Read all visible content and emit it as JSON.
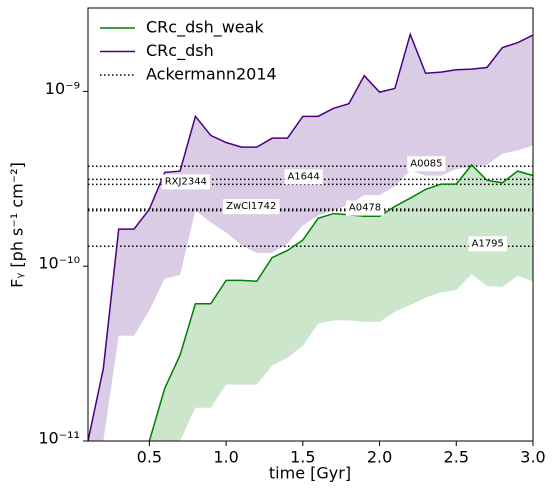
{
  "chart_data": {
    "type": "line",
    "x_label": "time [Gyr]",
    "y_label": "Fᵧ [ph s⁻¹ cm⁻²]",
    "y_scale": "log",
    "xlim": [
      0.1,
      3.0
    ],
    "ylim": [
      1e-11,
      3e-09
    ],
    "xticks": [
      0.5,
      {
        "value": 1,
        "label": "1.0"
      },
      1.5,
      {
        "value": 2,
        "label": "2.0"
      },
      2.5,
      {
        "value": 3,
        "label": "3.0"
      }
    ],
    "yticks": [
      {
        "value": 1e-11,
        "label": "10⁻¹¹"
      },
      {
        "value": 1e-10,
        "label": "10⁻¹⁰"
      },
      {
        "value": 1e-09,
        "label": "10⁻⁹"
      }
    ],
    "legend": "upper left",
    "band_opacity": 0.2,
    "x": [
      0.1,
      0.2,
      0.3,
      0.4,
      0.5,
      0.6,
      0.7,
      0.8,
      0.9,
      1.0,
      1.1,
      1.2,
      1.3,
      1.4,
      1.5,
      1.6,
      1.7,
      1.8,
      1.9,
      2.0,
      2.1,
      2.2,
      2.3,
      2.4,
      2.5,
      2.6,
      2.7,
      2.8,
      2.9,
      3.0
    ],
    "series": [
      {
        "name": "CRc_dsh_weak",
        "color": "#008000",
        "values": [
          null,
          null,
          null,
          null,
          1e-11,
          2e-11,
          3.1e-11,
          6.1e-11,
          6.1e-11,
          8.3e-11,
          8.3e-11,
          8.2e-11,
          1.12e-10,
          1.23e-10,
          1.41e-10,
          1.88e-10,
          2e-10,
          1.97e-10,
          1.93e-10,
          1.93e-10,
          2.2e-10,
          2.45e-10,
          2.75e-10,
          2.95e-10,
          2.95e-10,
          3.8e-10,
          3.1e-10,
          3e-10,
          3.5e-10,
          3.3e-10
        ],
        "lower": [
          null,
          null,
          null,
          null,
          1e-11,
          1e-11,
          1e-11,
          1.55e-11,
          1.55e-11,
          2.1e-11,
          2.1e-11,
          2.1e-11,
          2.7e-11,
          3e-11,
          3.5e-11,
          4.7e-11,
          4.9e-11,
          4.9e-11,
          4.8e-11,
          4.8e-11,
          5.5e-11,
          6e-11,
          6.6e-11,
          7.1e-11,
          7.3e-11,
          9e-11,
          7.7e-11,
          7.6e-11,
          8.8e-11,
          8.2e-11
        ]
      },
      {
        "name": "CRc_dsh",
        "color": "#4b0082",
        "values": [
          1e-11,
          2.6e-11,
          1.63e-10,
          1.63e-10,
          2.12e-10,
          3.44e-10,
          3.5e-10,
          7.2e-10,
          5.6e-10,
          5.1e-10,
          4.8e-10,
          4.8e-10,
          5.4e-10,
          5.4e-10,
          7.2e-10,
          7.2e-10,
          8e-10,
          8.5e-10,
          1.23e-09,
          9.9e-10,
          1.04e-09,
          2.12e-09,
          1.27e-09,
          1.29e-09,
          1.33e-09,
          1.34e-09,
          1.37e-09,
          1.78e-09,
          1.9e-09,
          2.1e-09
        ],
        "lower": [
          1e-11,
          1e-11,
          4e-11,
          4e-11,
          5.6e-11,
          8.5e-11,
          8.9e-11,
          2.09e-10,
          1.78e-10,
          1.56e-10,
          1.32e-10,
          1.19e-10,
          1.19e-10,
          1.35e-10,
          1.71e-10,
          1.95e-10,
          2.09e-10,
          2.24e-10,
          2.55e-10,
          2.55e-10,
          2.86e-10,
          3.54e-10,
          3.3e-10,
          3.3e-10,
          3.6e-10,
          3.7e-10,
          3.8e-10,
          4.4e-10,
          4.6e-10,
          4.9e-10
        ]
      }
    ],
    "reference": {
      "name": "Ackermann2014",
      "color": "#000000",
      "lines": [
        {
          "label": "A0085",
          "value": 3.73e-10,
          "x": 2.2
        },
        {
          "label": "A1644",
          "value": 3.14e-10,
          "x": 1.4
        },
        {
          "label": "RXJ2344",
          "value": 2.94e-10,
          "x": 0.6
        },
        {
          "label": "ZwCl1742",
          "value": 2.12e-10,
          "x": 1.0
        },
        {
          "label": "A0478",
          "value": 2.08e-10,
          "x": 1.8
        },
        {
          "label": "A1795",
          "value": 1.3e-10,
          "x": 2.6
        }
      ]
    }
  }
}
